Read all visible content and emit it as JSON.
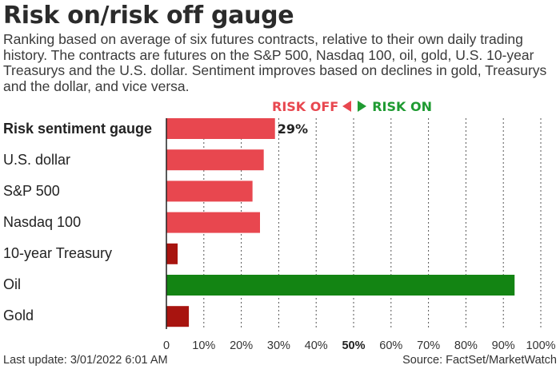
{
  "header": {
    "title": "Risk on/risk off gauge",
    "subtitle": "Ranking based on average of six futures contracts, relative to their own daily trading history. The contracts are futures on the S&P 500, Nasdaq 100, oil, gold, U.S. 10-year Treasurys and the U.S. dollar. Sentiment improves based on declines in gold, Treasurys and the dollar, and vice versa."
  },
  "legend": {
    "risk_off": "RISK OFF",
    "risk_on": "RISK ON",
    "risk_off_color": "#e8474f",
    "risk_on_color": "#1f9b32"
  },
  "colors": {
    "light_red": "#e8474f",
    "dark_red": "#a8140f",
    "green": "#138413"
  },
  "footer": {
    "last_update": "Last update: 3/01/2022 6:01 AM",
    "source": "Source: FactSet/MarketWatch"
  },
  "chart_data": {
    "type": "bar",
    "orientation": "horizontal",
    "categories": [
      "Risk sentiment gauge",
      "U.S. dollar",
      "S&P 500",
      "Nasdaq 100",
      "10-year Treasury",
      "Oil",
      "Gold"
    ],
    "values": [
      29,
      26,
      23,
      25,
      3,
      93,
      6
    ],
    "bar_colors": [
      "#e8474f",
      "#e8474f",
      "#e8474f",
      "#e8474f",
      "#a8140f",
      "#138413",
      "#a8140f"
    ],
    "data_labels": [
      "29%",
      "",
      "",
      "",
      "",
      "",
      ""
    ],
    "xlim": [
      0,
      100
    ],
    "x_ticks": [
      "0",
      "10%",
      "20%",
      "30%",
      "40%",
      "50%",
      "60%",
      "70%",
      "80%",
      "90%",
      "100%"
    ],
    "bold_tick": "50%",
    "grid": "vertical dotted"
  }
}
